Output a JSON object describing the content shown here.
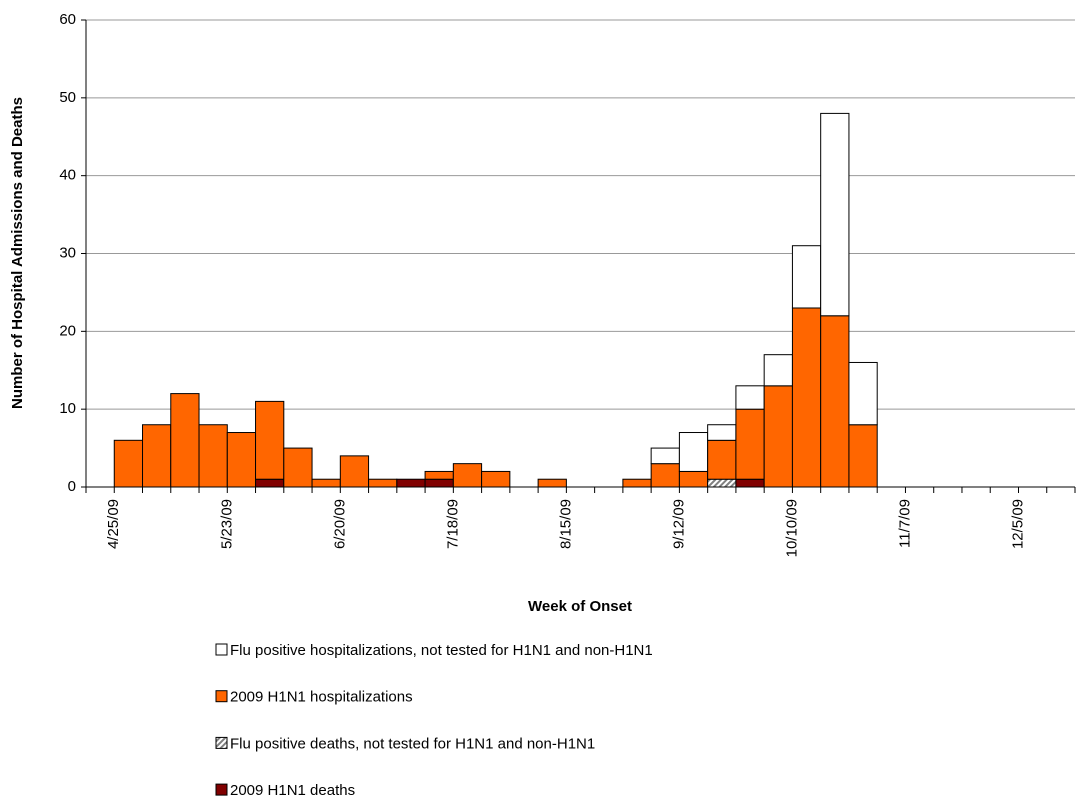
{
  "chart_data": {
    "type": "stacked_bar",
    "xlabel": "Week of Onset",
    "ylabel": "Number of Hospital Admissions and Deaths",
    "categories": [
      null,
      "4/25/09",
      null,
      null,
      null,
      "5/23/09",
      null,
      null,
      null,
      "6/20/09",
      null,
      null,
      null,
      "7/18/09",
      null,
      null,
      null,
      "8/15/09",
      null,
      null,
      null,
      "9/12/09",
      null,
      null,
      null,
      "10/10/09",
      null,
      null,
      null,
      "11/7/09",
      null,
      null,
      null,
      "12/5/09",
      null
    ],
    "series": [
      {
        "name": "Flu  positive hospitalizations, not tested for H1N1 and non-H1N1",
        "color": "#ffffff",
        "values": [
          0,
          0,
          0,
          0,
          0,
          0,
          0,
          0,
          0,
          0,
          0,
          0,
          0,
          0,
          0,
          0,
          0,
          0,
          0,
          0,
          2,
          5,
          2,
          3,
          4,
          8,
          26,
          8,
          0,
          0,
          0,
          0,
          0,
          0,
          0
        ]
      },
      {
        "name": "2009 H1N1 hospitalizations",
        "color": "#ff6600",
        "values": [
          0,
          6,
          8,
          12,
          8,
          7,
          10,
          5,
          1,
          4,
          1,
          0,
          1,
          3,
          2,
          0,
          1,
          0,
          0,
          1,
          3,
          2,
          5,
          9,
          13,
          23,
          22,
          8,
          0,
          0,
          0,
          0,
          0,
          0,
          0
        ]
      },
      {
        "name": "Flu positive deaths, not tested for H1N1 and non-H1N1",
        "color": "#808080",
        "pattern": "hatch",
        "values": [
          0,
          0,
          0,
          0,
          0,
          0,
          0,
          0,
          0,
          0,
          0,
          0,
          0,
          0,
          0,
          0,
          0,
          0,
          0,
          0,
          0,
          0,
          1,
          0,
          0,
          0,
          0,
          0,
          0,
          0,
          0,
          0,
          0,
          0,
          0
        ]
      },
      {
        "name": "2009 H1N1 deaths",
        "color": "#800000",
        "values": [
          0,
          0,
          0,
          0,
          0,
          0,
          1,
          0,
          0,
          0,
          0,
          1,
          1,
          0,
          0,
          0,
          0,
          0,
          0,
          0,
          0,
          0,
          0,
          1,
          0,
          0,
          0,
          0,
          0,
          0,
          0,
          0,
          0,
          0,
          0
        ]
      }
    ],
    "stack_order": [
      3,
      2,
      1,
      0
    ],
    "ylim": [
      0,
      60
    ],
    "yticks": [
      0,
      10,
      20,
      30,
      40,
      50,
      60
    ],
    "grid": true
  }
}
